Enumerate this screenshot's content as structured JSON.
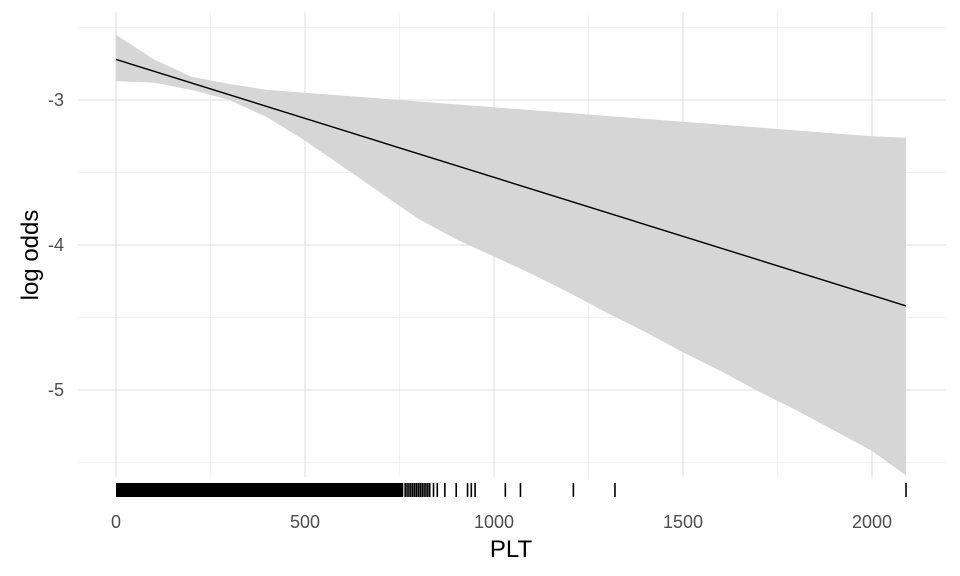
{
  "chart_data": {
    "type": "line",
    "title": "",
    "xlabel": "PLT",
    "ylabel": "log odds",
    "xlim": [
      -100,
      2200
    ],
    "ylim": [
      -5.65,
      -2.4
    ],
    "x_ticks": [
      0,
      500,
      1000,
      1500,
      2000
    ],
    "x_tick_labels": [
      "0",
      "500",
      "1000",
      "1500",
      "2000"
    ],
    "y_ticks": [
      -5,
      -4,
      -3
    ],
    "y_tick_labels": [
      "-5",
      "-4",
      "-3"
    ],
    "grid": true,
    "fit_line": {
      "x": [
        0,
        2090
      ],
      "y": [
        -2.72,
        -4.42
      ]
    },
    "confidence_band": {
      "x": [
        0,
        100,
        200,
        300,
        400,
        500,
        600,
        700,
        800,
        900,
        1000,
        1100,
        1200,
        1300,
        1400,
        1500,
        1600,
        1700,
        1800,
        1900,
        2000,
        2090
      ],
      "lower": [
        -2.87,
        -2.88,
        -2.93,
        -3.0,
        -3.12,
        -3.28,
        -3.46,
        -3.64,
        -3.82,
        -3.96,
        -4.08,
        -4.2,
        -4.33,
        -4.47,
        -4.6,
        -4.74,
        -4.87,
        -5.01,
        -5.14,
        -5.28,
        -5.42,
        -5.59
      ],
      "upper": [
        -2.55,
        -2.72,
        -2.84,
        -2.89,
        -2.93,
        -2.95,
        -2.97,
        -2.99,
        -3.01,
        -3.03,
        -3.05,
        -3.07,
        -3.09,
        -3.11,
        -3.13,
        -3.15,
        -3.17,
        -3.19,
        -3.21,
        -3.23,
        -3.25,
        -3.26
      ],
      "color": "#d6d6d6"
    },
    "rug": {
      "dense_range": [
        0,
        760
      ],
      "x": [
        765,
        770,
        775,
        780,
        785,
        790,
        795,
        800,
        805,
        810,
        815,
        820,
        825,
        830,
        840,
        850,
        870,
        900,
        930,
        940,
        950,
        1030,
        1070,
        1210,
        1320,
        2090
      ]
    }
  }
}
